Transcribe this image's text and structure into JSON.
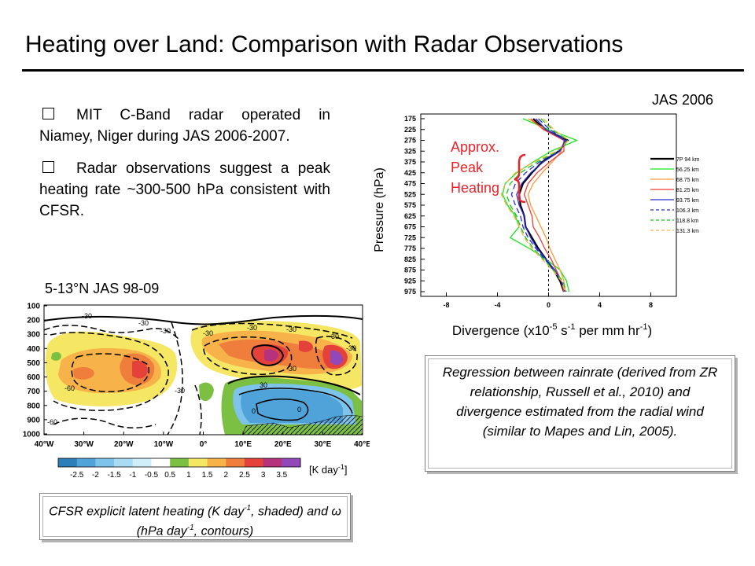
{
  "slide": {
    "title": "Heating over Land: Comparison with Radar Observations",
    "bullets": [
      "MIT C-Band radar operated in Niamey, Niger during JAS 2006-2007.",
      "Radar observations suggest a peak heating rate ~300-500 hPa consistent with CFSR."
    ],
    "bullet_icon": "checkbox-square-icon",
    "map_caption": "5-13°N JAS 98-09",
    "jas_label": "JAS 2006",
    "peak_annotation": [
      "Approx.",
      "Peak",
      "Heating"
    ],
    "peak_color": "#e8232a",
    "cfsr_box": [
      "CFSR explicit latent heating (K day",
      "-1",
      ", shaded) and ω (hPa day",
      "-1",
      ", contours)"
    ],
    "regression_box": "Regression between rainrate (derived from ZR relationship, Russell et al., 2010) and divergence estimated from the radial wind (similar to Mapes and Lin, 2005)."
  },
  "chart_data": [
    {
      "type": "line",
      "ylabel": "Pressure (hPa)",
      "xlabel_parts": [
        "Divergence (x10",
        "-5",
        " s",
        "-1",
        " per mm hr",
        "-1",
        ")"
      ],
      "xlim": [
        -10,
        10
      ],
      "xticks": [
        -8,
        -4,
        0,
        4,
        8
      ],
      "ylim": [
        975,
        175
      ],
      "yticks": [
        175,
        225,
        275,
        325,
        375,
        425,
        475,
        525,
        575,
        625,
        675,
        725,
        775,
        825,
        875,
        925,
        975
      ],
      "y": [
        175,
        225,
        275,
        325,
        375,
        425,
        475,
        525,
        575,
        625,
        675,
        725,
        775,
        825,
        875,
        925,
        975
      ],
      "zero_line": true,
      "series": [
        {
          "name": "7P 94 km",
          "color": "#000000",
          "dash": "",
          "width": 2.2,
          "values": [
            -1.2,
            -0.3,
            1.5,
            0.8,
            -0.5,
            -1.3,
            -2.0,
            -2.3,
            -2.2,
            -1.9,
            -1.8,
            -1.3,
            -0.8,
            -0.2,
            0.4,
            0.9,
            1.2
          ]
        },
        {
          "name": "56.25 km",
          "color": "#19e619",
          "dash": "",
          "width": 1.3,
          "values": [
            -2.0,
            0.0,
            2.2,
            0.2,
            -1.2,
            -2.5,
            -3.4,
            -3.6,
            -3.2,
            -2.6,
            -2.3,
            -3.0,
            -1.5,
            -0.2,
            0.9,
            1.4,
            1.6
          ]
        },
        {
          "name": "68.75 km",
          "color": "#ff9a3c",
          "dash": "",
          "width": 1.3,
          "values": [
            -1.6,
            -0.2,
            1.2,
            1.0,
            0.3,
            -0.5,
            -1.2,
            -1.6,
            -1.4,
            -1.0,
            -0.6,
            -0.2,
            0.1,
            0.5,
            0.9,
            1.2,
            1.3
          ]
        },
        {
          "name": "81.25 km",
          "color": "#f03c32",
          "dash": "",
          "width": 1.3,
          "values": [
            -1.4,
            -0.4,
            1.2,
            1.2,
            0.1,
            -0.9,
            -1.6,
            -1.9,
            -1.6,
            -1.3,
            -1.2,
            -0.7,
            -0.3,
            0.2,
            0.6,
            1.0,
            1.2
          ]
        },
        {
          "name": "93.75 km",
          "color": "#2a2ad2",
          "dash": "",
          "width": 1.3,
          "values": [
            -1.0,
            -0.2,
            1.3,
            0.9,
            -0.4,
            -1.4,
            -2.1,
            -2.5,
            -2.3,
            -1.9,
            -1.8,
            -1.4,
            -0.9,
            -0.2,
            0.5,
            1.0,
            1.3
          ]
        },
        {
          "name": "106.3 km",
          "color": "#2a2ad2",
          "dash": "7,4",
          "width": 1.3,
          "values": [
            -0.8,
            0.1,
            1.4,
            0.8,
            -0.7,
            -1.8,
            -2.6,
            -2.9,
            -2.6,
            -2.2,
            -2.0,
            -1.6,
            -1.0,
            -0.3,
            0.4,
            1.0,
            1.3
          ]
        },
        {
          "name": "118.8 km",
          "color": "#19c619",
          "dash": "7,4",
          "width": 1.3,
          "values": [
            -0.6,
            0.3,
            1.5,
            0.7,
            -0.9,
            -2.2,
            -3.0,
            -3.3,
            -3.0,
            -2.5,
            -2.2,
            -1.8,
            -1.2,
            -0.4,
            0.4,
            1.1,
            1.4
          ]
        },
        {
          "name": "131.3 km",
          "color": "#ffb446",
          "dash": "7,4",
          "width": 1.3,
          "values": [
            -0.4,
            0.4,
            1.6,
            0.6,
            -1.1,
            -2.6,
            -3.4,
            -3.7,
            -3.3,
            -2.7,
            -2.3,
            -1.9,
            -1.3,
            -0.5,
            0.3,
            1.0,
            1.3
          ]
        }
      ]
    },
    {
      "type": "heatmap",
      "xticks": [
        "40°W",
        "30°W",
        "20°W",
        "10°W",
        "0°",
        "10°E",
        "20°E",
        "30°E",
        "40°E"
      ],
      "yticks": [
        "100",
        "200",
        "300",
        "400",
        "500",
        "600",
        "700",
        "800",
        "900",
        "1000"
      ],
      "colorbar_ticks": [
        "-2.5",
        "-2",
        "-1.5",
        "-1",
        "-0.5",
        "0.5",
        "1",
        "1.5",
        "2",
        "2.5",
        "3",
        "3.5"
      ],
      "colorbar_unit_parts": [
        "[K day",
        "-1",
        "]"
      ],
      "colors": [
        "#2c7fb8",
        "#4fa3d9",
        "#7ec3ea",
        "#a9dcf4",
        "#cfeefa",
        "#ffffff",
        "#7bc043",
        "#f5e663",
        "#f7b24a",
        "#ef7d3c",
        "#e4413b",
        "#b5337d",
        "#9248b8"
      ],
      "contour_labels": [
        "-30",
        "-30",
        "-60",
        "-30",
        "-30",
        "-60",
        "-30",
        "-30",
        "-30",
        "-30",
        "-30",
        "-30",
        "0",
        "0",
        "30"
      ]
    }
  ]
}
